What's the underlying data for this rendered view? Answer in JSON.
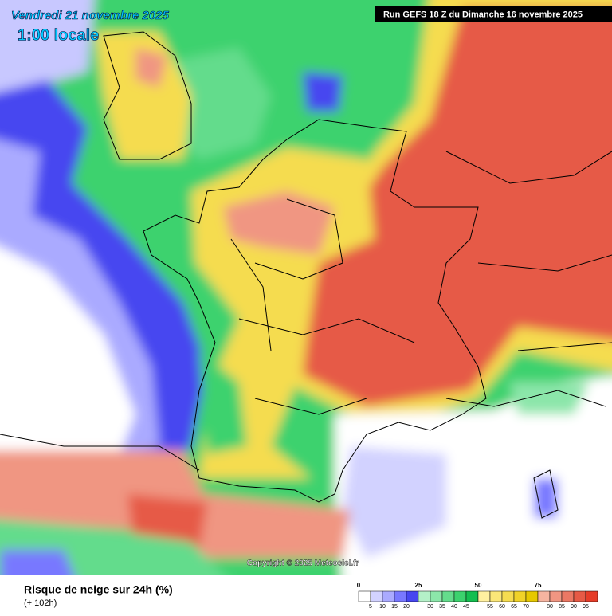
{
  "header": {
    "date": "Vendredi 21 novembre 2025",
    "time": "1:00 locale",
    "run": "Run GEFS 18 Z du Dimanche 16 novembre 2025"
  },
  "copyright": "Copyright © 2025 Meteociel.fr",
  "footer": {
    "title": "Risque de neige sur 24h (%)",
    "lead": "(+ 102h)"
  },
  "legend": {
    "range": [
      0,
      100
    ],
    "colors": [
      "#ffffff",
      "#d2d2ff",
      "#aaaaff",
      "#7878ff",
      "#4646f0",
      "#b4f0c8",
      "#8ce6aa",
      "#64dc8c",
      "#3cd26e",
      "#14be50",
      "#fff0a0",
      "#fae678",
      "#f5dc50",
      "#f0d228",
      "#e6c800",
      "#f5b4a0",
      "#f09682",
      "#eb7864",
      "#e65a46",
      "#e63c28"
    ],
    "major_ticks": [
      0,
      25,
      50,
      75
    ],
    "minor_ticks": [
      5,
      10,
      15,
      20,
      30,
      35,
      40,
      45,
      55,
      60,
      65,
      70,
      80,
      85,
      90,
      95
    ]
  }
}
